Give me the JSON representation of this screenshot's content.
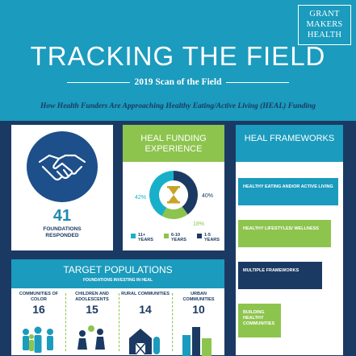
{
  "brand": {
    "logo_lines": [
      "GRANT",
      "MAKERS",
      "HEALTH"
    ]
  },
  "header": {
    "title": "TRACKING THE FIELD",
    "subtitle": "2019 Scan of the Field",
    "tagline": "How Health Funders Are Approaching Healthy Eating/Active Living (HEAL) Funding"
  },
  "foundations": {
    "count": "41",
    "label": "FOUNDATIONS RESPONDED",
    "icon": "handshake-icon"
  },
  "funding_experience": {
    "title": "HEAL FUNDING EXPERIENCE",
    "center_icon": "hourglass-icon"
  },
  "frameworks": {
    "title": "HEAL FRAMEWORKS"
  },
  "target_populations": {
    "title": "TARGET POPULATIONS",
    "subtitle": "FOUNDATIONS INVESTING IN HEAL"
  },
  "colors": {
    "teal": "#1b9bbd",
    "navy": "#1b3a63",
    "green": "#8dc44e",
    "light_teal": "#18b0c9"
  },
  "chart_data": [
    {
      "type": "pie",
      "categories": [
        "11+ YEARS",
        "6-10 YEARS",
        "1-5 YEARS"
      ],
      "values": [
        42,
        18,
        40
      ],
      "value_labels": [
        "42%",
        "18%",
        "40%"
      ],
      "colors": [
        "#18b0c9",
        "#8dc44e",
        "#1b3a63"
      ],
      "title": "HEAL FUNDING EXPERIENCE",
      "legend": "bottom"
    },
    {
      "type": "bar",
      "orientation": "horizontal",
      "categories": [
        "HEALTHY EATING AND/OR ACTIVE LIVING",
        "HEALTHY LIFESTYLES/ WELLNESS",
        "MULTIPLE FRAMEWORKS",
        "BUILDING HEALTHY COMMUNITIES"
      ],
      "values": [
        1.0,
        0.93,
        0.84,
        0.43
      ],
      "colors": [
        "#1b9bbd",
        "#8dc44e",
        "#1b3a63",
        "#8dc44e"
      ],
      "title": "HEAL FRAMEWORKS"
    },
    {
      "type": "table",
      "title": "TARGET POPULATIONS",
      "categories": [
        "COMMUNITIES OF COLOR",
        "CHILDREN AND ADOLESCENTS",
        "RURAL COMMUNITIES",
        "URBAN COMMUNITIES"
      ],
      "values": [
        16,
        15,
        14,
        10
      ],
      "icons": [
        "people-icon",
        "kids-playing-icon",
        "barn-icon",
        "city-buildings-icon"
      ]
    }
  ]
}
